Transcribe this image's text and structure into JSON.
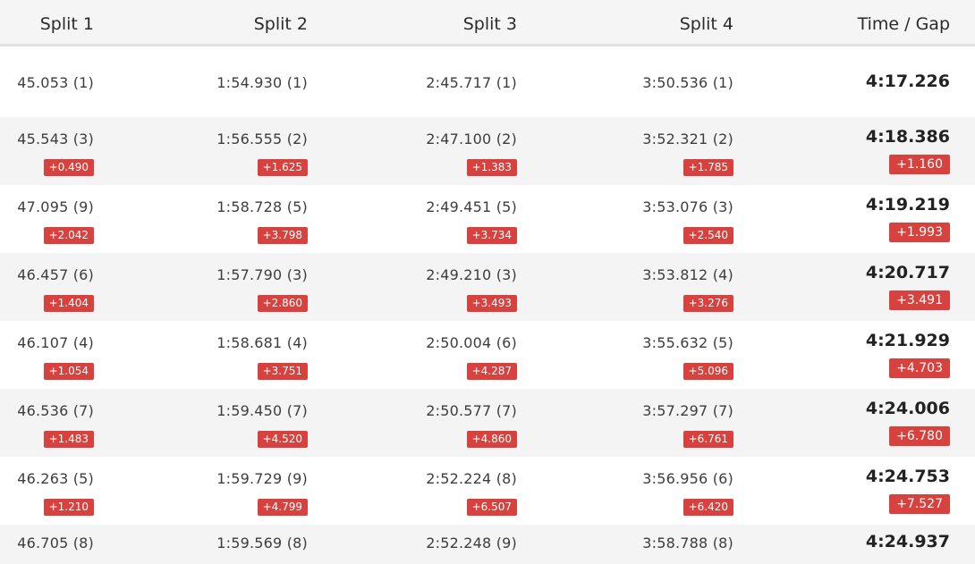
{
  "headers": [
    "Split 1",
    "Split 2",
    "Split 3",
    "Split 4",
    "Time / Gap"
  ],
  "rows": [
    {
      "splits": [
        "45.053 (1)",
        "1:54.930 (1)",
        "2:45.717 (1)",
        "3:50.536 (1)"
      ],
      "total": "4:17.226"
    },
    {
      "splits": [
        "45.543 (3)",
        "1:56.555 (2)",
        "2:47.100 (2)",
        "3:52.321 (2)"
      ],
      "gaps": [
        "+0.490",
        "+1.625",
        "+1.383",
        "+1.785"
      ],
      "total": "4:18.386",
      "total_gap": "+1.160"
    },
    {
      "splits": [
        "47.095 (9)",
        "1:58.728 (5)",
        "2:49.451 (5)",
        "3:53.076 (3)"
      ],
      "gaps": [
        "+2.042",
        "+3.798",
        "+3.734",
        "+2.540"
      ],
      "total": "4:19.219",
      "total_gap": "+1.993"
    },
    {
      "splits": [
        "46.457 (6)",
        "1:57.790 (3)",
        "2:49.210 (3)",
        "3:53.812 (4)"
      ],
      "gaps": [
        "+1.404",
        "+2.860",
        "+3.493",
        "+3.276"
      ],
      "total": "4:20.717",
      "total_gap": "+3.491"
    },
    {
      "splits": [
        "46.107 (4)",
        "1:58.681 (4)",
        "2:50.004 (6)",
        "3:55.632 (5)"
      ],
      "gaps": [
        "+1.054",
        "+3.751",
        "+4.287",
        "+5.096"
      ],
      "total": "4:21.929",
      "total_gap": "+4.703"
    },
    {
      "splits": [
        "46.536 (7)",
        "1:59.450 (7)",
        "2:50.577 (7)",
        "3:57.297 (7)"
      ],
      "gaps": [
        "+1.483",
        "+4.520",
        "+4.860",
        "+6.761"
      ],
      "total": "4:24.006",
      "total_gap": "+6.780"
    },
    {
      "splits": [
        "46.263 (5)",
        "1:59.729 (9)",
        "2:52.224 (8)",
        "3:56.956 (6)"
      ],
      "gaps": [
        "+1.210",
        "+4.799",
        "+6.507",
        "+6.420"
      ],
      "total": "4:24.753",
      "total_gap": "+7.527"
    },
    {
      "splits": [
        "46.705 (8)",
        "1:59.569 (8)",
        "2:52.248 (9)",
        "3:58.788 (8)"
      ],
      "total": "4:24.937"
    }
  ],
  "colors": {
    "gap_badge": "#d8423e",
    "header_bg": "#f5f5f5",
    "alt_row_bg": "#f4f4f4"
  }
}
